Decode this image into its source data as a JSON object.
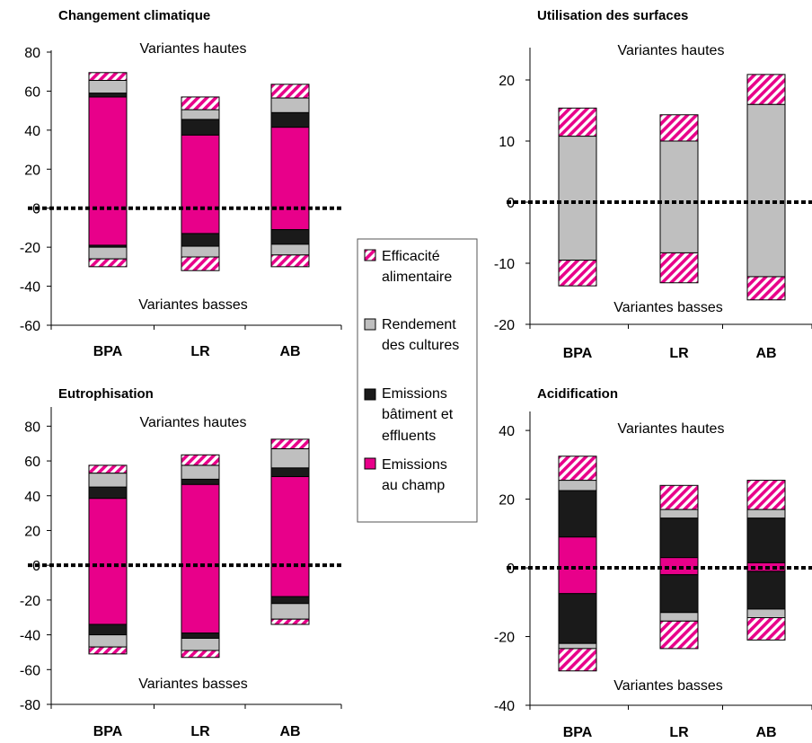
{
  "colors": {
    "emissions_champ": "#e8008a",
    "emissions_batiment": "#1a1a1a",
    "rendement": "#bfbfbf",
    "efficacite": "#e8008a"
  },
  "legend": {
    "items": [
      {
        "key": "efficacite",
        "pattern": "hatch",
        "lines": [
          "Efficacité",
          "alimentaire"
        ]
      },
      {
        "key": "rendement",
        "pattern": "solid",
        "lines": [
          "Rendement",
          "des cultures"
        ]
      },
      {
        "key": "batiment",
        "pattern": "solid",
        "lines": [
          "Emissions",
          "bâtiment et",
          "effluents"
        ]
      },
      {
        "key": "champ",
        "pattern": "solid",
        "lines": [
          "Emissions",
          "au champ"
        ]
      }
    ]
  },
  "chart_data": [
    {
      "type": "bar",
      "title": "Changement climatique",
      "categories": [
        "BPA",
        "LR",
        "AB"
      ],
      "ylim": [
        -60,
        80
      ],
      "yticks": [
        -60,
        -40,
        -20,
        0,
        20,
        40,
        60,
        80
      ],
      "annotation_top": "Variantes hautes",
      "annotation_bottom": "Variantes basses",
      "series": [
        {
          "key": "champ",
          "values": [
            [
              -19,
              57
            ],
            [
              -13,
              37.5
            ],
            [
              -11,
              41.5
            ]
          ]
        },
        {
          "key": "batiment",
          "values": [
            [
              -20,
              -19,
              57,
              59
            ],
            [
              -19.5,
              -13,
              37.5,
              45.5
            ],
            [
              -18.5,
              -11,
              41.5,
              49
            ]
          ]
        },
        {
          "key": "rendement",
          "values": [
            [
              -26,
              -20,
              59,
              65.5
            ],
            [
              -25,
              -19.5,
              45.5,
              50.5
            ],
            [
              -24,
              -18.5,
              49,
              56.5
            ]
          ]
        },
        {
          "key": "efficacite",
          "values": [
            [
              -30,
              -26,
              65.5,
              69.5
            ],
            [
              -32,
              -25,
              50.5,
              57
            ],
            [
              -30,
              -24,
              56.5,
              63.5
            ]
          ]
        }
      ]
    },
    {
      "type": "bar",
      "title": "Utilisation des surfaces",
      "categories": [
        "BPA",
        "LR",
        "AB"
      ],
      "ylim": [
        -20,
        25
      ],
      "yticks": [
        -20,
        -10,
        0,
        10,
        20
      ],
      "annotation_top": "Variantes hautes",
      "annotation_bottom": "Variantes basses",
      "series": [
        {
          "key": "rendement",
          "values": [
            [
              -9.5,
              10.8
            ],
            [
              -8.3,
              10
            ],
            [
              -12.2,
              16
            ]
          ]
        },
        {
          "key": "efficacite",
          "values": [
            [
              -13.7,
              -9.5,
              10.8,
              15.4
            ],
            [
              -13.2,
              -8.3,
              10,
              14.3
            ],
            [
              -16,
              -12.2,
              16,
              20.9
            ]
          ]
        }
      ]
    },
    {
      "type": "bar",
      "title": "Eutrophisation",
      "categories": [
        "BPA",
        "LR",
        "AB"
      ],
      "ylim": [
        -80,
        90
      ],
      "yticks": [
        -80,
        -60,
        -40,
        -20,
        0,
        20,
        40,
        60,
        80
      ],
      "annotation_top": "Variantes hautes",
      "annotation_bottom": "Variantes basses",
      "series": [
        {
          "key": "champ",
          "values": [
            [
              -34,
              38.5
            ],
            [
              -39,
              46.5
            ],
            [
              -18,
              51
            ]
          ]
        },
        {
          "key": "batiment",
          "values": [
            [
              -40,
              -34,
              38.5,
              45
            ],
            [
              -42,
              -39,
              46.5,
              49.5
            ],
            [
              -22,
              -18,
              51,
              56
            ]
          ]
        },
        {
          "key": "rendement",
          "values": [
            [
              -47,
              -40,
              45,
              53
            ],
            [
              -49,
              -42,
              49.5,
              57.5
            ],
            [
              -31,
              -22,
              56,
              67
            ]
          ]
        },
        {
          "key": "efficacite",
          "values": [
            [
              -51,
              -47,
              53,
              57.5
            ],
            [
              -53,
              -49,
              57.5,
              63.5
            ],
            [
              -34,
              -31,
              67,
              72.5
            ]
          ]
        }
      ]
    },
    {
      "type": "bar",
      "title": "Acidification",
      "categories": [
        "BPA",
        "LR",
        "AB"
      ],
      "ylim": [
        -40,
        45
      ],
      "yticks": [
        -40,
        -20,
        0,
        20,
        40
      ],
      "annotation_top": "Variantes hautes",
      "annotation_bottom": "Variantes basses",
      "series": [
        {
          "key": "champ",
          "values": [
            [
              -7.5,
              9
            ],
            [
              -2,
              3
            ],
            [
              -1,
              1.5
            ]
          ]
        },
        {
          "key": "batiment",
          "values": [
            [
              -22,
              -7.5,
              9,
              22.5
            ],
            [
              -13,
              -2,
              3,
              14.5
            ],
            [
              -12,
              -1,
              1.5,
              14.5
            ]
          ]
        },
        {
          "key": "rendement",
          "values": [
            [
              -23.5,
              -22,
              22.5,
              25.5
            ],
            [
              -15.5,
              -13,
              14.5,
              17
            ],
            [
              -14.5,
              -12,
              14.5,
              17
            ]
          ]
        },
        {
          "key": "efficacite",
          "values": [
            [
              -30,
              -23.5,
              25.5,
              32.5
            ],
            [
              -23.5,
              -15.5,
              17,
              24
            ],
            [
              -21,
              -14.5,
              17,
              25.5
            ]
          ]
        }
      ]
    }
  ]
}
